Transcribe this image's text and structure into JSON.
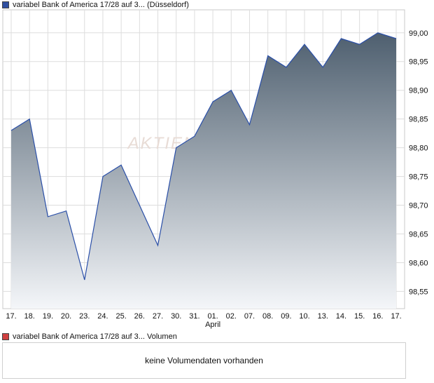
{
  "price_legend": {
    "label": "variabel Bank of America 17/28 auf 3... (Düsseldorf)",
    "color": "#2f4fa0"
  },
  "volume_legend": {
    "label": "variabel Bank of America 17/28 auf 3... Volumen",
    "color": "#d04040"
  },
  "volume_message": "keine Volumendaten vorhanden",
  "watermark": "AKTIEN",
  "chart_data": {
    "type": "area",
    "categories": [
      "17.",
      "18.",
      "19.",
      "20.",
      "23.",
      "24.",
      "25.",
      "26.",
      "27.",
      "30.",
      "31.",
      "01.",
      "02.",
      "07.",
      "08.",
      "09.",
      "10.",
      "13.",
      "14.",
      "15.",
      "16.",
      "17."
    ],
    "month_label": {
      "text": "April",
      "at_category_index": 11
    },
    "series": [
      {
        "values": [
          98.83,
          98.85,
          98.68,
          98.69,
          98.57,
          98.75,
          98.77,
          98.7,
          98.63,
          98.8,
          98.82,
          98.88,
          98.9,
          98.84,
          98.96,
          98.94,
          98.98,
          98.94,
          98.99,
          98.98,
          99.0,
          98.99
        ]
      }
    ],
    "y_ticks": [
      "99,00",
      "98,95",
      "98,90",
      "98,85",
      "98,80",
      "98,75",
      "98,70",
      "98,65",
      "98,60",
      "98,55"
    ],
    "y_tick_values": [
      99.0,
      98.95,
      98.9,
      98.85,
      98.8,
      98.75,
      98.7,
      98.65,
      98.6,
      98.55
    ],
    "ylim": [
      98.52,
      99.04
    ],
    "grid": true,
    "line_color": "#2a4fa8",
    "fill_top_color": "#4e5f6f",
    "fill_bottom_color": "#f4f6f9"
  }
}
